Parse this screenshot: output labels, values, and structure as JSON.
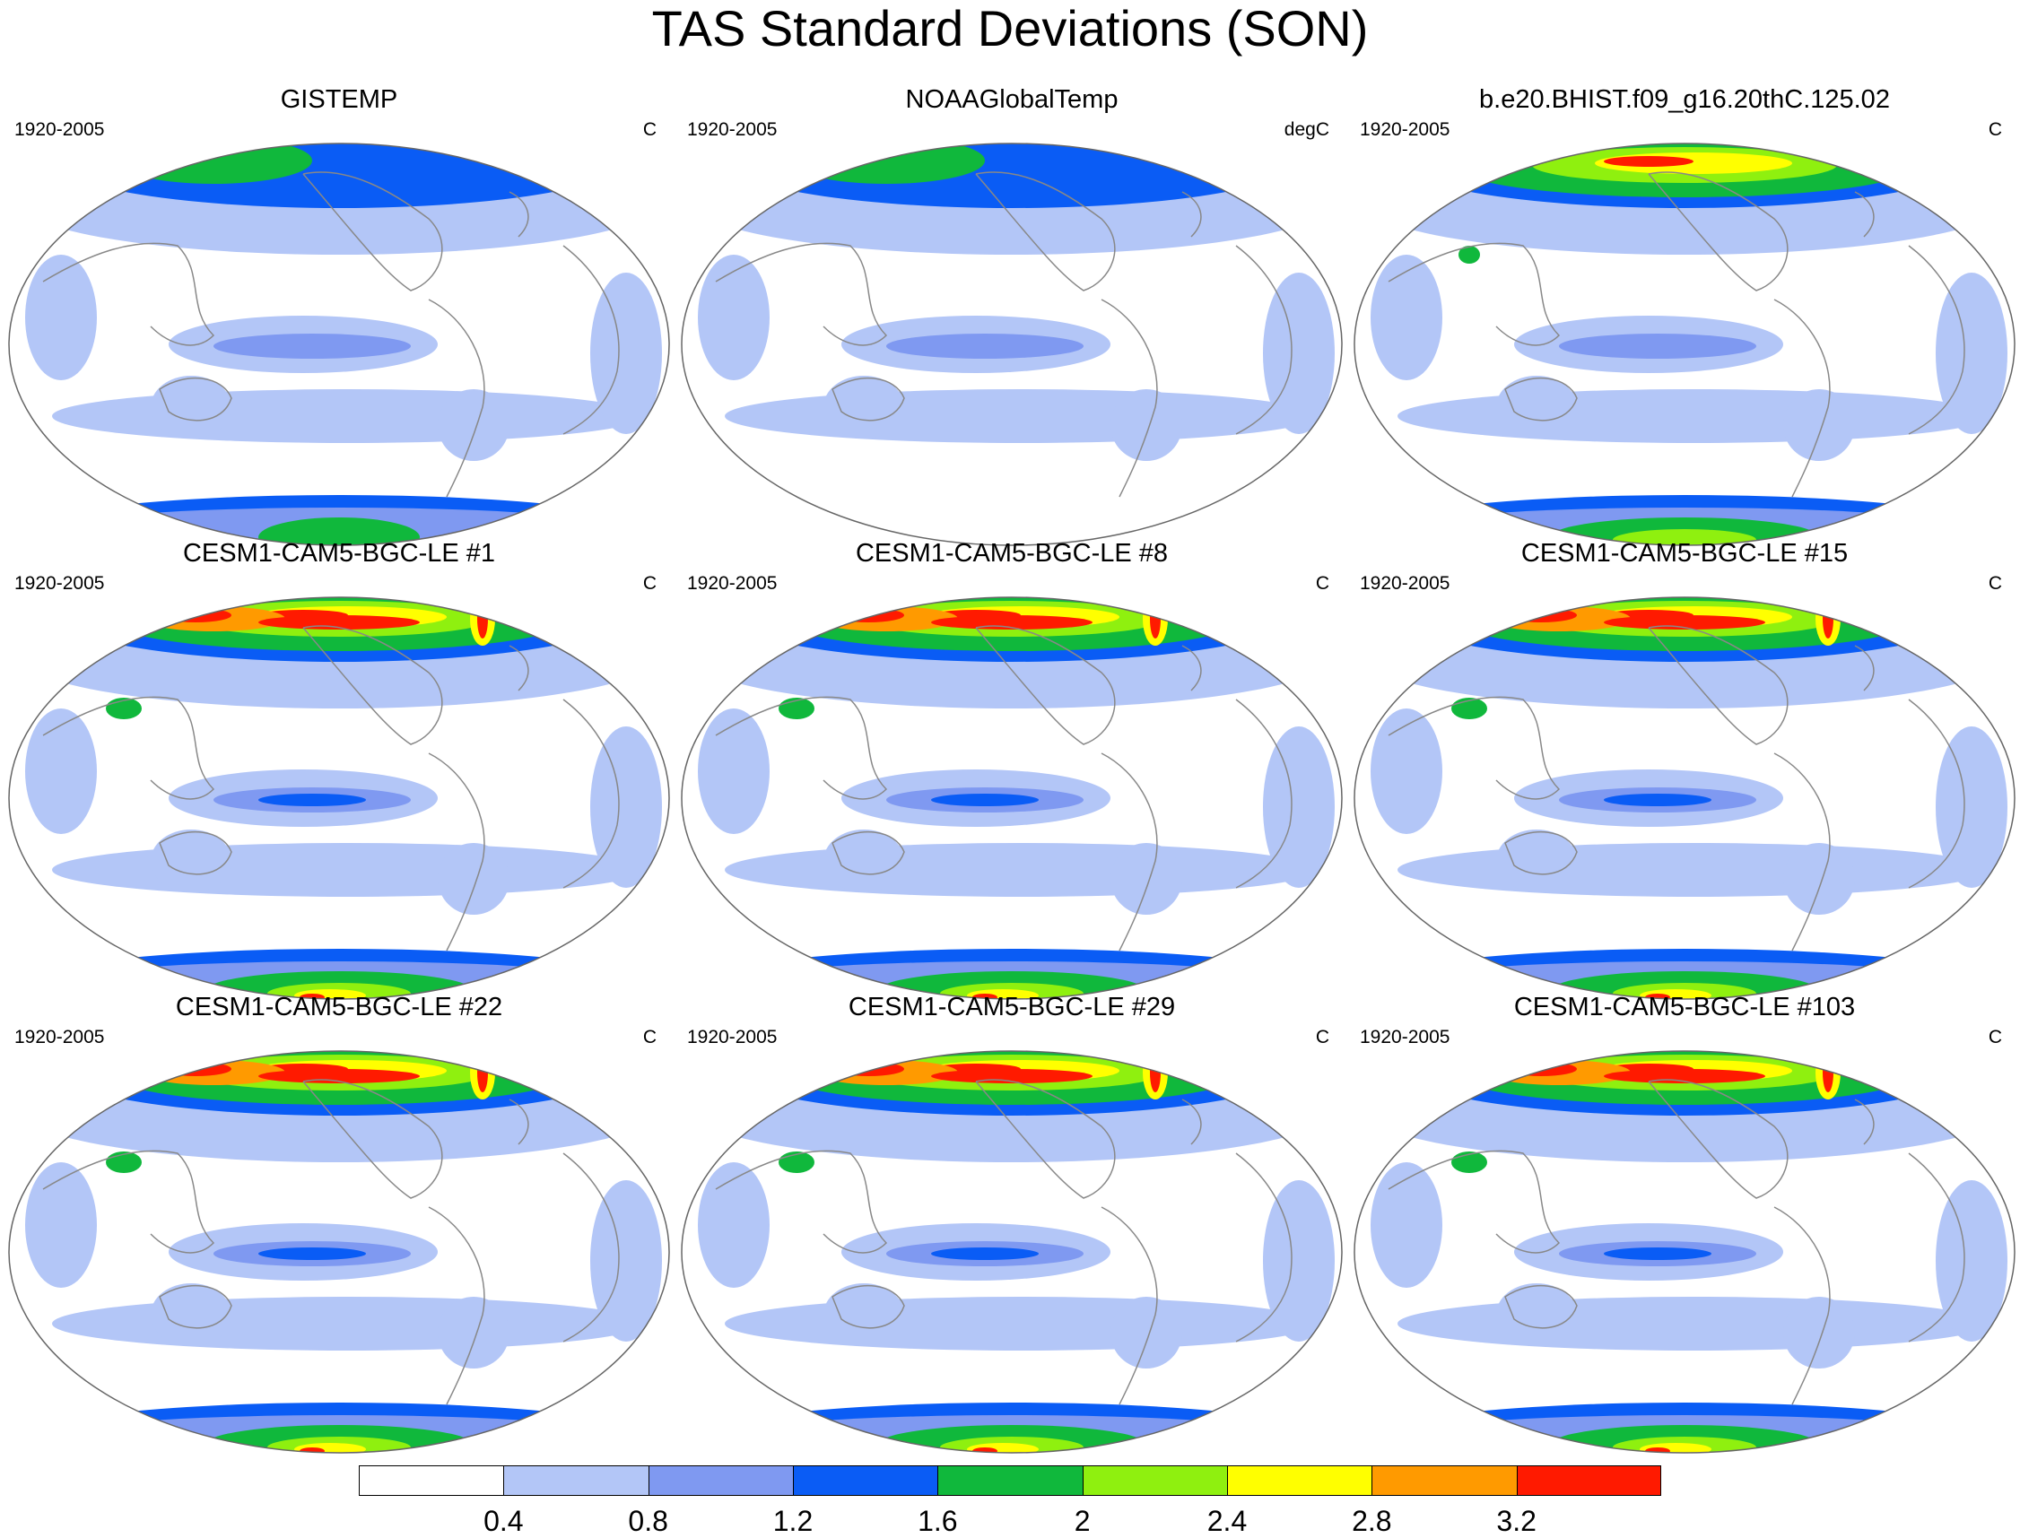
{
  "title": "TAS Standard Deviations (SON)",
  "colors": {
    "levels": [
      "#ffffff",
      "#b3c6f7",
      "#7f99f1",
      "#0a5cf5",
      "#10b83c",
      "#8ff00f",
      "#ffff00",
      "#ff9a00",
      "#ff1a00"
    ],
    "coast": "#888888",
    "outline": "#666666"
  },
  "panels": [
    {
      "title": "GISTEMP",
      "period": "1920-2005",
      "units": "C",
      "intensity": 0
    },
    {
      "title": "NOAAGlobalTemp",
      "period": "1920-2005",
      "units": "degC",
      "intensity": 0
    },
    {
      "title": "b.e20.BHIST.f09_g16.20thC.125.02",
      "period": "1920-2005",
      "units": "C",
      "intensity": 2
    },
    {
      "title": "CESM1-CAM5-BGC-LE #1",
      "period": "1920-2005",
      "units": "C",
      "intensity": 3
    },
    {
      "title": "CESM1-CAM5-BGC-LE #8",
      "period": "1920-2005",
      "units": "C",
      "intensity": 3
    },
    {
      "title": "CESM1-CAM5-BGC-LE #15",
      "period": "1920-2005",
      "units": "C",
      "intensity": 3
    },
    {
      "title": "CESM1-CAM5-BGC-LE #22",
      "period": "1920-2005",
      "units": "C",
      "intensity": 3
    },
    {
      "title": "CESM1-CAM5-BGC-LE #29",
      "period": "1920-2005",
      "units": "C",
      "intensity": 3
    },
    {
      "title": "CESM1-CAM5-BGC-LE #103",
      "period": "1920-2005",
      "units": "C",
      "intensity": 3
    }
  ],
  "colorbar": {
    "labels": [
      "0.4",
      "0.8",
      "1.2",
      "1.6",
      "2",
      "2.4",
      "2.8",
      "3.2"
    ]
  }
}
